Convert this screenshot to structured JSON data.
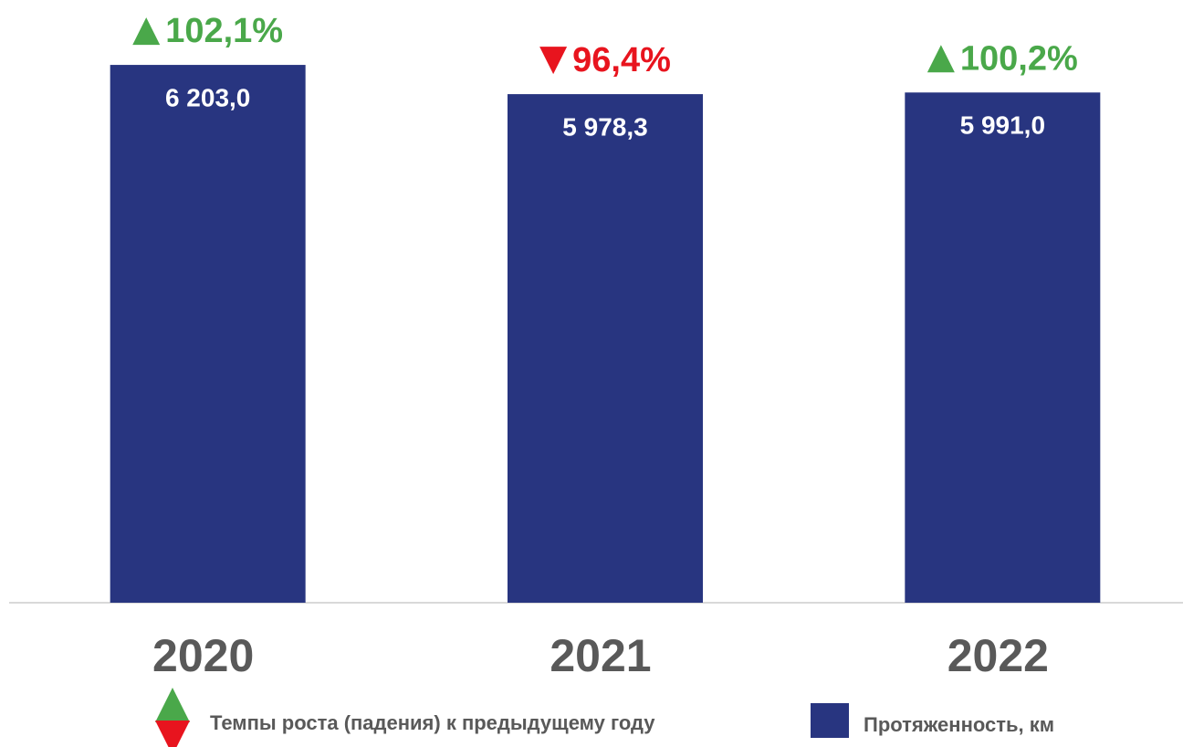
{
  "chart_data": {
    "type": "bar",
    "categories": [
      "2020",
      "2021",
      "2022"
    ],
    "series": [
      {
        "name": "Протяженность, км",
        "color": "#283580",
        "values": [
          6203.0,
          5978.3,
          5991.0
        ],
        "value_labels": [
          "6 203,0",
          "5 978,3",
          "5 991,0"
        ]
      }
    ],
    "growth": {
      "name": "Темпы роста (падения) к предыдущему году",
      "values": [
        102.1,
        96.4,
        100.2
      ],
      "value_labels": [
        "102,1%",
        "96,4%",
        "100,2%"
      ],
      "up_color": "#4aa84a",
      "down_color": "#e8141e"
    },
    "ylim": [
      2070,
      6400
    ]
  }
}
